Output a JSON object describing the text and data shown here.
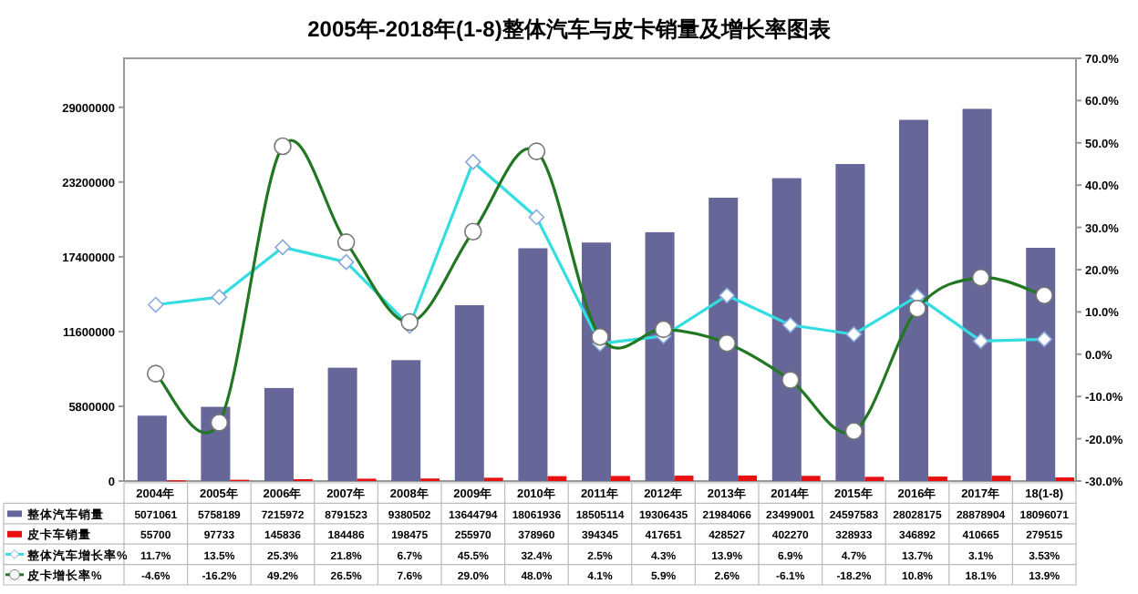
{
  "chart_data": {
    "type": "bar",
    "title": "2005年-2018年(1-8)整体汽车与皮卡销量及增长率图表",
    "categories": [
      "2004年",
      "2005年",
      "2006年",
      "2007年",
      "2008年",
      "2009年",
      "2010年",
      "2011年",
      "2012年",
      "2013年",
      "2014年",
      "2015年",
      "2016年",
      "2017年",
      "18(1-8)"
    ],
    "series": [
      {
        "name": "整体汽车销量",
        "color": "#666699",
        "values": [
          5071061,
          5758189,
          7215972,
          8791523,
          9380502,
          13644794,
          18061936,
          18505114,
          19306435,
          21984066,
          23499001,
          24597583,
          28028175,
          28878904,
          18096071
        ],
        "value_labels": [
          "5071061",
          "5758189",
          "7215972",
          "8791523",
          "9380502",
          "13644794",
          "18061936",
          "18505114",
          "19306435",
          "21984066",
          "23499001",
          "24597583",
          "28028175",
          "28878904",
          "18096071"
        ]
      },
      {
        "name": "皮卡车销量",
        "color": "#e81010",
        "values": [
          55700,
          97733,
          145836,
          184486,
          198475,
          255970,
          378960,
          394345,
          417651,
          428527,
          402270,
          328933,
          346892,
          410665,
          279515
        ],
        "value_labels": [
          "55700",
          "97733",
          "145836",
          "184486",
          "198475",
          "255970",
          "378960",
          "394345",
          "417651",
          "428527",
          "402270",
          "328933",
          "346892",
          "410665",
          "279515"
        ]
      },
      {
        "name": "整体汽车增长率%",
        "type": "line",
        "axis": "y2",
        "color": "#33dde0",
        "marker": "diamond",
        "values": [
          11.7,
          13.5,
          25.3,
          21.8,
          6.7,
          45.5,
          32.4,
          2.5,
          4.3,
          13.9,
          6.9,
          4.7,
          13.7,
          3.1,
          3.53
        ],
        "value_labels": [
          "11.7%",
          "13.5%",
          "25.3%",
          "21.8%",
          "6.7%",
          "45.5%",
          "32.4%",
          "2.5%",
          "4.3%",
          "13.9%",
          "6.9%",
          "4.7%",
          "13.7%",
          "3.1%",
          "3.53%"
        ]
      },
      {
        "name": "皮卡增长率%",
        "type": "line",
        "axis": "y2",
        "color": "#227722",
        "marker": "circle",
        "values": [
          -4.6,
          -16.2,
          49.2,
          26.5,
          7.6,
          29.0,
          48.0,
          4.1,
          5.9,
          2.6,
          -6.1,
          -18.2,
          10.8,
          18.1,
          13.9
        ],
        "value_labels": [
          "-4.6%",
          "-16.2%",
          "49.2%",
          "26.5%",
          "7.6%",
          "29.0%",
          "48.0%",
          "4.1%",
          "5.9%",
          "2.6%",
          "-6.1%",
          "-18.2%",
          "10.8%",
          "18.1%",
          "13.9%"
        ]
      }
    ],
    "ylim": [
      0,
      32800000
    ],
    "yticks": [
      0,
      5800000,
      11600000,
      17400000,
      23200000,
      29000000
    ],
    "y2lim": [
      -30,
      70
    ],
    "y2ticks": [
      {
        "value": -30,
        "label": "-30.0%"
      },
      {
        "value": -20,
        "label": "-20.0%"
      },
      {
        "value": -10,
        "label": "-10.0%"
      },
      {
        "value": 0,
        "label": "0.0%"
      },
      {
        "value": 10,
        "label": "10.0%"
      },
      {
        "value": 20,
        "label": "20.0%"
      },
      {
        "value": 30,
        "label": "30.0%"
      },
      {
        "value": 40,
        "label": "40.0%"
      },
      {
        "value": 50,
        "label": "50.0%"
      },
      {
        "value": 60,
        "label": "60.0%"
      },
      {
        "value": 70,
        "label": "70.0%"
      }
    ],
    "legend": "bottom"
  }
}
